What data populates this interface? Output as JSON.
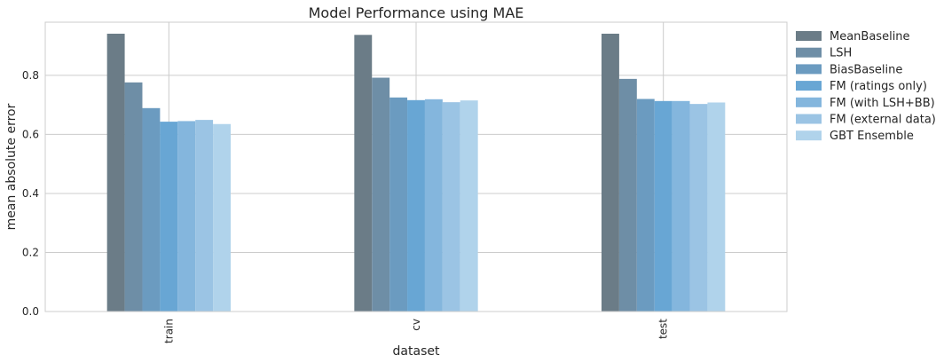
{
  "chart_data": {
    "type": "bar",
    "title": "Model Performance using MAE",
    "xlabel": "dataset",
    "ylabel": "mean absolute error",
    "categories": [
      "train",
      "cv",
      "test"
    ],
    "ylim": [
      0,
      0.98
    ],
    "yticks": [
      "0.0",
      "0.2",
      "0.4",
      "0.6",
      "0.8"
    ],
    "grid": true,
    "legend_position": "outside-right",
    "series": [
      {
        "name": "MeanBaseline",
        "color": "#6b7c87",
        "values": [
          0.941,
          0.937,
          0.941
        ]
      },
      {
        "name": "LSH",
        "color": "#6e8ea6",
        "values": [
          0.776,
          0.792,
          0.788
        ]
      },
      {
        "name": "BiasBaseline",
        "color": "#6b9bc0",
        "values": [
          0.689,
          0.725,
          0.72
        ]
      },
      {
        "name": "FM (ratings only)",
        "color": "#68a6d4",
        "values": [
          0.643,
          0.716,
          0.713
        ]
      },
      {
        "name": "FM (with LSH+BB)",
        "color": "#84b6dd",
        "values": [
          0.645,
          0.719,
          0.713
        ]
      },
      {
        "name": "FM (external data)",
        "color": "#9bc4e4",
        "values": [
          0.649,
          0.709,
          0.703
        ]
      },
      {
        "name": "GBT Ensemble",
        "color": "#b0d3eb",
        "values": [
          0.635,
          0.715,
          0.708
        ]
      }
    ]
  }
}
